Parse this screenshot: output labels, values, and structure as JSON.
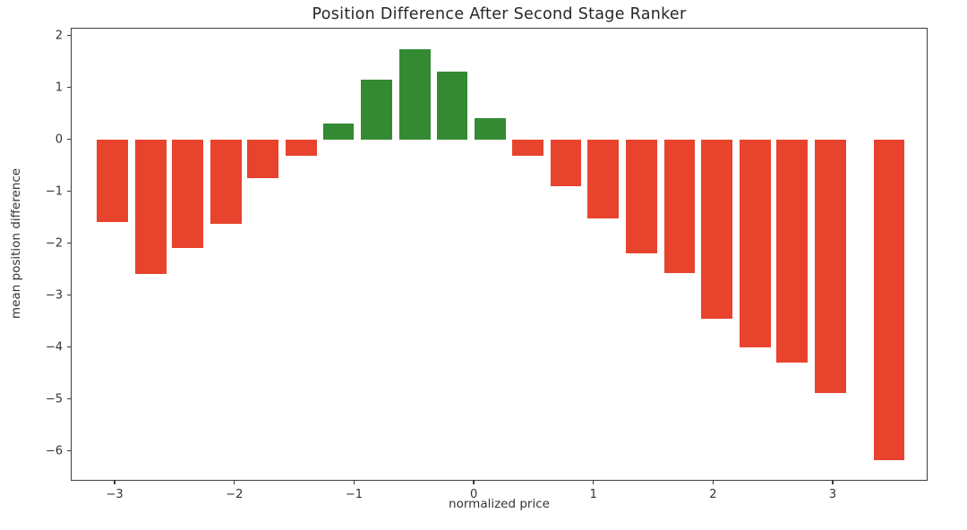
{
  "chart_data": {
    "type": "bar",
    "title": "Position Difference After Second Stage Ranker",
    "xlabel": "normalized price",
    "ylabel": "mean position difference",
    "xlim": [
      -3.36,
      3.8
    ],
    "ylim": [
      -6.59,
      2.13
    ],
    "grid": false,
    "legend": null,
    "bar_width": 0.26,
    "colors": {
      "positive": "#338a33",
      "negative": "#e8432d",
      "spine": "#3d3d3d",
      "text": "#333333"
    },
    "x_ticks": [
      {
        "v": -3,
        "label": "−3"
      },
      {
        "v": -2,
        "label": "−2"
      },
      {
        "v": -1,
        "label": "−1"
      },
      {
        "v": 0,
        "label": "0"
      },
      {
        "v": 1,
        "label": "1"
      },
      {
        "v": 2,
        "label": "2"
      },
      {
        "v": 3,
        "label": "3"
      }
    ],
    "y_ticks": [
      {
        "v": 2,
        "label": "2"
      },
      {
        "v": 1,
        "label": "1"
      },
      {
        "v": 0,
        "label": "0"
      },
      {
        "v": -1,
        "label": "−1"
      },
      {
        "v": -2,
        "label": "−2"
      },
      {
        "v": -3,
        "label": "−3"
      },
      {
        "v": -4,
        "label": "−4"
      },
      {
        "v": -5,
        "label": "−5"
      },
      {
        "v": -6,
        "label": "−6"
      }
    ],
    "points": [
      {
        "x": -3.02,
        "y": -1.6
      },
      {
        "x": -2.7,
        "y": -2.6
      },
      {
        "x": -2.39,
        "y": -2.1
      },
      {
        "x": -2.07,
        "y": -1.63
      },
      {
        "x": -1.76,
        "y": -0.75
      },
      {
        "x": -1.44,
        "y": -0.32
      },
      {
        "x": -1.13,
        "y": 0.31
      },
      {
        "x": -0.81,
        "y": 1.14
      },
      {
        "x": -0.49,
        "y": 1.74
      },
      {
        "x": -0.18,
        "y": 1.3
      },
      {
        "x": 0.14,
        "y": 0.4
      },
      {
        "x": 0.45,
        "y": -0.31
      },
      {
        "x": 0.77,
        "y": -0.91
      },
      {
        "x": 1.08,
        "y": -1.52
      },
      {
        "x": 1.4,
        "y": -2.2
      },
      {
        "x": 1.72,
        "y": -2.57
      },
      {
        "x": 2.03,
        "y": -3.45
      },
      {
        "x": 2.35,
        "y": -4.0
      },
      {
        "x": 2.66,
        "y": -4.3
      },
      {
        "x": 2.98,
        "y": -4.88
      },
      {
        "x": 3.47,
        "y": -6.17
      }
    ]
  }
}
